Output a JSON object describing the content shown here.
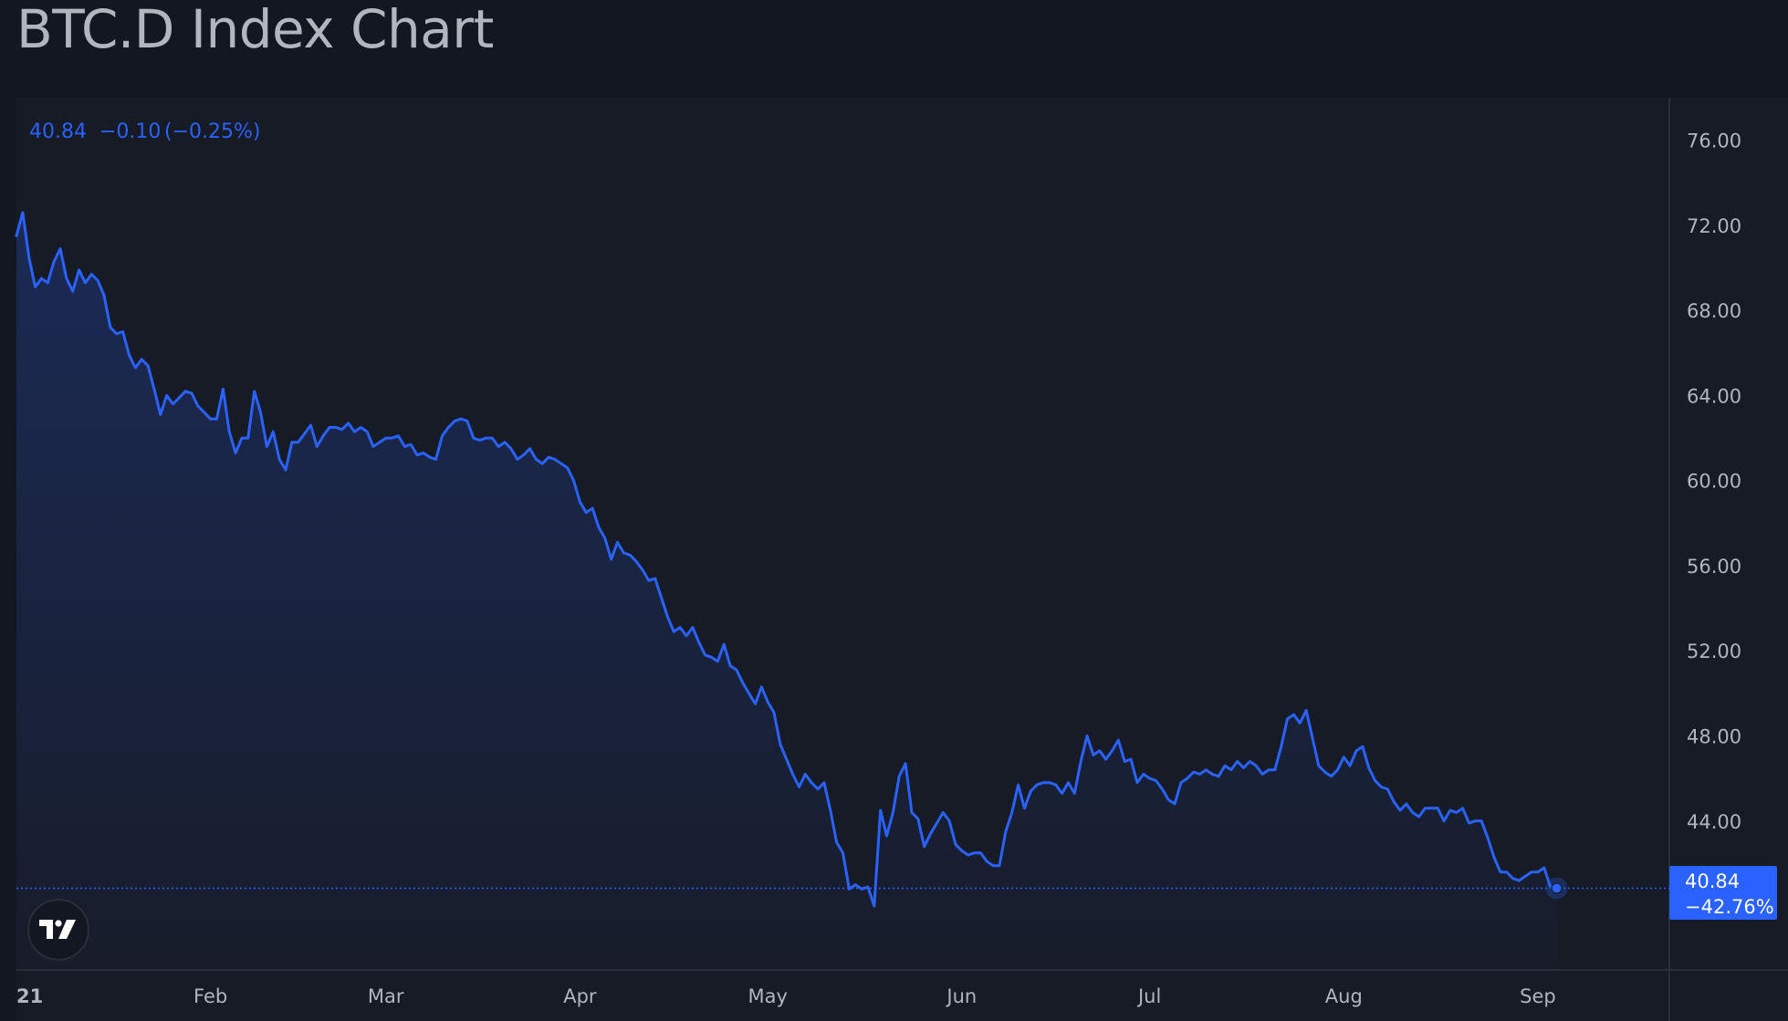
{
  "page": {
    "title": "BTC.D Index Chart"
  },
  "legend": {
    "last": "40.84",
    "change": "−0.10",
    "change_pct": "(−0.25%)"
  },
  "price_tag": {
    "value": "40.84",
    "pct": "−42.76%"
  },
  "colors": {
    "line": "#2962ff",
    "background": "#131722",
    "text": "#b2b5be",
    "grid": "#2a2e39"
  },
  "logo": {
    "icon": "tradingview-logo-icon"
  },
  "chart_data": {
    "type": "area",
    "title": "BTC.D Index Chart",
    "ylim": [
      37,
      78
    ],
    "y_ticks": [
      "76.00",
      "72.00",
      "68.00",
      "64.00",
      "60.00",
      "56.00",
      "52.00",
      "48.00",
      "44.00"
    ],
    "x_ticks": [
      {
        "label": "21",
        "date": "2021-01-01"
      },
      {
        "label": "Feb",
        "date": "2021-02-01"
      },
      {
        "label": "Mar",
        "date": "2021-03-01"
      },
      {
        "label": "Apr",
        "date": "2021-04-01"
      },
      {
        "label": "May",
        "date": "2021-05-01"
      },
      {
        "label": "Jun",
        "date": "2021-06-01"
      },
      {
        "label": "Jul",
        "date": "2021-07-01"
      },
      {
        "label": "Aug",
        "date": "2021-08-01"
      },
      {
        "label": "Sep",
        "date": "2021-09-01"
      }
    ],
    "x_range": [
      "2021-01-01",
      "2021-09-22"
    ],
    "grid": false,
    "series": [
      {
        "color": "#2962ff",
        "points": [
          [
            "2021-01-01",
            71.5
          ],
          [
            "2021-01-02",
            72.6
          ],
          [
            "2021-01-03",
            70.5
          ],
          [
            "2021-01-04",
            69.1
          ],
          [
            "2021-01-05",
            69.5
          ],
          [
            "2021-01-06",
            69.3
          ],
          [
            "2021-01-07",
            70.3
          ],
          [
            "2021-01-08",
            70.9
          ],
          [
            "2021-01-09",
            69.5
          ],
          [
            "2021-01-10",
            68.9
          ],
          [
            "2021-01-11",
            69.9
          ],
          [
            "2021-01-12",
            69.3
          ],
          [
            "2021-01-13",
            69.7
          ],
          [
            "2021-01-14",
            69.4
          ],
          [
            "2021-01-15",
            68.7
          ],
          [
            "2021-01-16",
            67.2
          ],
          [
            "2021-01-17",
            66.9
          ],
          [
            "2021-01-18",
            67.0
          ],
          [
            "2021-01-19",
            65.9
          ],
          [
            "2021-01-20",
            65.3
          ],
          [
            "2021-01-21",
            65.7
          ],
          [
            "2021-01-22",
            65.4
          ],
          [
            "2021-01-23",
            64.3
          ],
          [
            "2021-01-24",
            63.1
          ],
          [
            "2021-01-25",
            64.0
          ],
          [
            "2021-01-26",
            63.6
          ],
          [
            "2021-01-27",
            63.9
          ],
          [
            "2021-01-28",
            64.2
          ],
          [
            "2021-01-29",
            64.1
          ],
          [
            "2021-01-30",
            63.5
          ],
          [
            "2021-01-31",
            63.2
          ],
          [
            "2021-02-01",
            62.9
          ],
          [
            "2021-02-02",
            62.9
          ],
          [
            "2021-02-03",
            64.3
          ],
          [
            "2021-02-04",
            62.3
          ],
          [
            "2021-02-05",
            61.3
          ],
          [
            "2021-02-06",
            62.0
          ],
          [
            "2021-02-07",
            62.0
          ],
          [
            "2021-02-08",
            64.2
          ],
          [
            "2021-02-09",
            63.2
          ],
          [
            "2021-02-10",
            61.6
          ],
          [
            "2021-02-11",
            62.3
          ],
          [
            "2021-02-12",
            61.0
          ],
          [
            "2021-02-13",
            60.5
          ],
          [
            "2021-02-14",
            61.8
          ],
          [
            "2021-02-15",
            61.8
          ],
          [
            "2021-02-16",
            62.2
          ],
          [
            "2021-02-17",
            62.6
          ],
          [
            "2021-02-18",
            61.6
          ],
          [
            "2021-02-19",
            62.1
          ],
          [
            "2021-02-20",
            62.5
          ],
          [
            "2021-02-21",
            62.5
          ],
          [
            "2021-02-22",
            62.4
          ],
          [
            "2021-02-23",
            62.7
          ],
          [
            "2021-02-24",
            62.3
          ],
          [
            "2021-02-25",
            62.5
          ],
          [
            "2021-02-26",
            62.3
          ],
          [
            "2021-02-27",
            61.6
          ],
          [
            "2021-02-28",
            61.8
          ],
          [
            "2021-03-01",
            62.0
          ],
          [
            "2021-03-02",
            62.0
          ],
          [
            "2021-03-03",
            62.1
          ],
          [
            "2021-03-04",
            61.6
          ],
          [
            "2021-03-05",
            61.7
          ],
          [
            "2021-03-06",
            61.2
          ],
          [
            "2021-03-07",
            61.3
          ],
          [
            "2021-03-08",
            61.1
          ],
          [
            "2021-03-09",
            61.0
          ],
          [
            "2021-03-10",
            62.1
          ],
          [
            "2021-03-11",
            62.5
          ],
          [
            "2021-03-12",
            62.8
          ],
          [
            "2021-03-13",
            62.9
          ],
          [
            "2021-03-14",
            62.8
          ],
          [
            "2021-03-15",
            62.0
          ],
          [
            "2021-03-16",
            61.9
          ],
          [
            "2021-03-17",
            62.0
          ],
          [
            "2021-03-18",
            62.0
          ],
          [
            "2021-03-19",
            61.6
          ],
          [
            "2021-03-20",
            61.8
          ],
          [
            "2021-03-21",
            61.5
          ],
          [
            "2021-03-22",
            61.0
          ],
          [
            "2021-03-23",
            61.2
          ],
          [
            "2021-03-24",
            61.5
          ],
          [
            "2021-03-25",
            61.0
          ],
          [
            "2021-03-26",
            60.8
          ],
          [
            "2021-03-27",
            61.1
          ],
          [
            "2021-03-28",
            61.0
          ],
          [
            "2021-03-29",
            60.8
          ],
          [
            "2021-03-30",
            60.6
          ],
          [
            "2021-03-31",
            60.0
          ],
          [
            "2021-04-01",
            59.0
          ],
          [
            "2021-04-02",
            58.5
          ],
          [
            "2021-04-03",
            58.7
          ],
          [
            "2021-04-04",
            57.8
          ],
          [
            "2021-04-05",
            57.3
          ],
          [
            "2021-04-06",
            56.3
          ],
          [
            "2021-04-07",
            57.1
          ],
          [
            "2021-04-08",
            56.6
          ],
          [
            "2021-04-09",
            56.5
          ],
          [
            "2021-04-10",
            56.2
          ],
          [
            "2021-04-11",
            55.8
          ],
          [
            "2021-04-12",
            55.3
          ],
          [
            "2021-04-13",
            55.4
          ],
          [
            "2021-04-14",
            54.5
          ],
          [
            "2021-04-15",
            53.6
          ],
          [
            "2021-04-16",
            52.9
          ],
          [
            "2021-04-17",
            53.1
          ],
          [
            "2021-04-18",
            52.7
          ],
          [
            "2021-04-19",
            53.1
          ],
          [
            "2021-04-20",
            52.4
          ],
          [
            "2021-04-21",
            51.8
          ],
          [
            "2021-04-22",
            51.7
          ],
          [
            "2021-04-23",
            51.5
          ],
          [
            "2021-04-24",
            52.3
          ],
          [
            "2021-04-25",
            51.3
          ],
          [
            "2021-04-26",
            51.1
          ],
          [
            "2021-04-27",
            50.5
          ],
          [
            "2021-04-28",
            50.0
          ],
          [
            "2021-04-29",
            49.5
          ],
          [
            "2021-04-30",
            50.3
          ],
          [
            "2021-05-01",
            49.6
          ],
          [
            "2021-05-02",
            49.1
          ],
          [
            "2021-05-03",
            47.6
          ],
          [
            "2021-05-04",
            46.9
          ],
          [
            "2021-05-05",
            46.2
          ],
          [
            "2021-05-06",
            45.6
          ],
          [
            "2021-05-07",
            46.2
          ],
          [
            "2021-05-08",
            45.8
          ],
          [
            "2021-05-09",
            45.5
          ],
          [
            "2021-05-10",
            45.8
          ],
          [
            "2021-05-11",
            44.5
          ],
          [
            "2021-05-12",
            43.0
          ],
          [
            "2021-05-13",
            42.5
          ],
          [
            "2021-05-14",
            40.8
          ],
          [
            "2021-05-15",
            41.0
          ],
          [
            "2021-05-16",
            40.8
          ],
          [
            "2021-05-17",
            40.9
          ],
          [
            "2021-05-18",
            40.0
          ],
          [
            "2021-05-19",
            44.5
          ],
          [
            "2021-05-20",
            43.3
          ],
          [
            "2021-05-21",
            44.4
          ],
          [
            "2021-05-22",
            46.1
          ],
          [
            "2021-05-23",
            46.7
          ],
          [
            "2021-05-24",
            44.4
          ],
          [
            "2021-05-25",
            44.1
          ],
          [
            "2021-05-26",
            42.8
          ],
          [
            "2021-05-27",
            43.4
          ],
          [
            "2021-05-28",
            43.9
          ],
          [
            "2021-05-29",
            44.4
          ],
          [
            "2021-05-30",
            44.0
          ],
          [
            "2021-05-31",
            42.9
          ],
          [
            "2021-06-01",
            42.6
          ],
          [
            "2021-06-02",
            42.4
          ],
          [
            "2021-06-03",
            42.5
          ],
          [
            "2021-06-04",
            42.5
          ],
          [
            "2021-06-05",
            42.1
          ],
          [
            "2021-06-06",
            41.9
          ],
          [
            "2021-06-07",
            41.9
          ],
          [
            "2021-06-08",
            43.5
          ],
          [
            "2021-06-09",
            44.4
          ],
          [
            "2021-06-10",
            45.7
          ],
          [
            "2021-06-11",
            44.6
          ],
          [
            "2021-06-12",
            45.4
          ],
          [
            "2021-06-13",
            45.7
          ],
          [
            "2021-06-14",
            45.8
          ],
          [
            "2021-06-15",
            45.8
          ],
          [
            "2021-06-16",
            45.7
          ],
          [
            "2021-06-17",
            45.3
          ],
          [
            "2021-06-18",
            45.8
          ],
          [
            "2021-06-19",
            45.3
          ],
          [
            "2021-06-20",
            46.8
          ],
          [
            "2021-06-21",
            48.0
          ],
          [
            "2021-06-22",
            47.1
          ],
          [
            "2021-06-23",
            47.3
          ],
          [
            "2021-06-24",
            46.9
          ],
          [
            "2021-06-25",
            47.3
          ],
          [
            "2021-06-26",
            47.8
          ],
          [
            "2021-06-27",
            46.8
          ],
          [
            "2021-06-28",
            46.9
          ],
          [
            "2021-06-29",
            45.8
          ],
          [
            "2021-06-30",
            46.2
          ],
          [
            "2021-07-01",
            46.0
          ],
          [
            "2021-07-02",
            45.9
          ],
          [
            "2021-07-03",
            45.5
          ],
          [
            "2021-07-04",
            45.0
          ],
          [
            "2021-07-05",
            44.8
          ],
          [
            "2021-07-06",
            45.8
          ],
          [
            "2021-07-07",
            46.0
          ],
          [
            "2021-07-08",
            46.3
          ],
          [
            "2021-07-09",
            46.2
          ],
          [
            "2021-07-10",
            46.4
          ],
          [
            "2021-07-11",
            46.2
          ],
          [
            "2021-07-12",
            46.1
          ],
          [
            "2021-07-13",
            46.6
          ],
          [
            "2021-07-14",
            46.4
          ],
          [
            "2021-07-15",
            46.8
          ],
          [
            "2021-07-16",
            46.5
          ],
          [
            "2021-07-17",
            46.8
          ],
          [
            "2021-07-18",
            46.6
          ],
          [
            "2021-07-19",
            46.2
          ],
          [
            "2021-07-20",
            46.4
          ],
          [
            "2021-07-21",
            46.4
          ],
          [
            "2021-07-22",
            47.5
          ],
          [
            "2021-07-23",
            48.8
          ],
          [
            "2021-07-24",
            49.0
          ],
          [
            "2021-07-25",
            48.6
          ],
          [
            "2021-07-26",
            49.2
          ],
          [
            "2021-07-27",
            47.9
          ],
          [
            "2021-07-28",
            46.6
          ],
          [
            "2021-07-29",
            46.3
          ],
          [
            "2021-07-30",
            46.1
          ],
          [
            "2021-07-31",
            46.4
          ],
          [
            "2021-08-01",
            47.0
          ],
          [
            "2021-08-02",
            46.6
          ],
          [
            "2021-08-03",
            47.3
          ],
          [
            "2021-08-04",
            47.5
          ],
          [
            "2021-08-05",
            46.5
          ],
          [
            "2021-08-06",
            45.9
          ],
          [
            "2021-08-07",
            45.6
          ],
          [
            "2021-08-08",
            45.5
          ],
          [
            "2021-08-09",
            44.9
          ],
          [
            "2021-08-10",
            44.5
          ],
          [
            "2021-08-11",
            44.8
          ],
          [
            "2021-08-12",
            44.4
          ],
          [
            "2021-08-13",
            44.2
          ],
          [
            "2021-08-14",
            44.6
          ],
          [
            "2021-08-15",
            44.6
          ],
          [
            "2021-08-16",
            44.6
          ],
          [
            "2021-08-17",
            44.0
          ],
          [
            "2021-08-18",
            44.5
          ],
          [
            "2021-08-19",
            44.4
          ],
          [
            "2021-08-20",
            44.6
          ],
          [
            "2021-08-21",
            43.9
          ],
          [
            "2021-08-22",
            44.0
          ],
          [
            "2021-08-23",
            44.0
          ],
          [
            "2021-08-24",
            43.2
          ],
          [
            "2021-08-25",
            42.3
          ],
          [
            "2021-08-26",
            41.6
          ],
          [
            "2021-08-27",
            41.6
          ],
          [
            "2021-08-28",
            41.3
          ],
          [
            "2021-08-29",
            41.2
          ],
          [
            "2021-08-30",
            41.4
          ],
          [
            "2021-08-31",
            41.6
          ],
          [
            "2021-09-01",
            41.6
          ],
          [
            "2021-09-02",
            41.8
          ],
          [
            "2021-09-03",
            40.9
          ],
          [
            "2021-09-04",
            40.84
          ]
        ]
      }
    ]
  }
}
